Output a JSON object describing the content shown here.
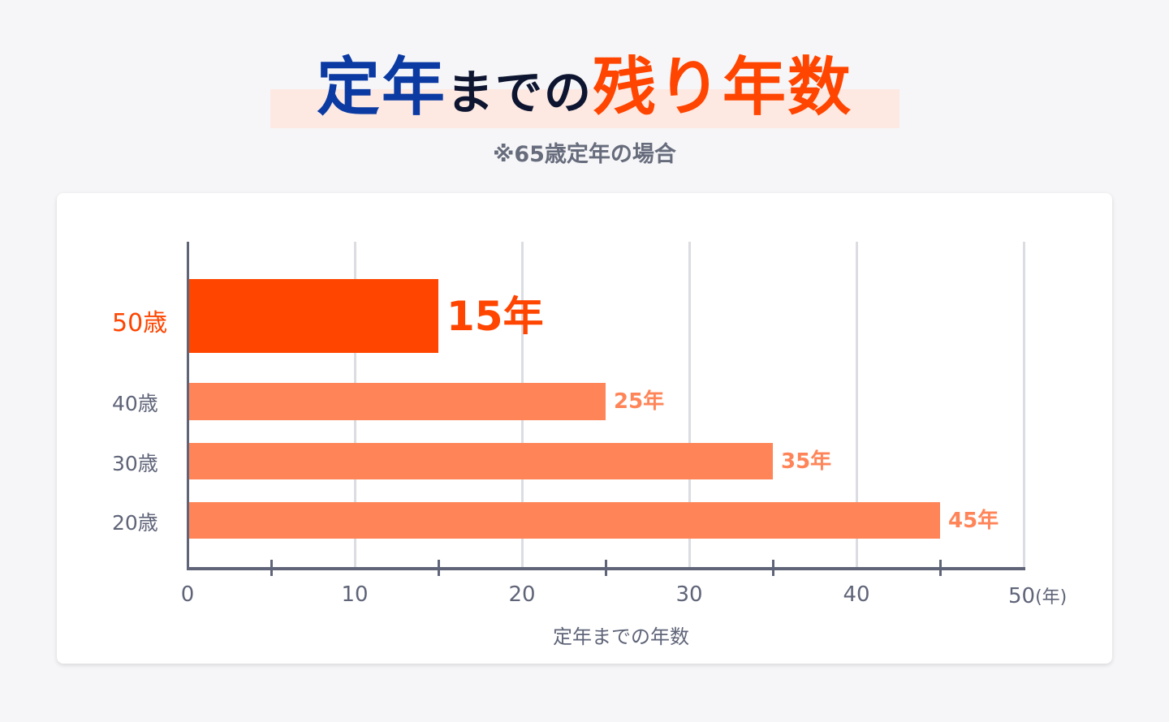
{
  "title": {
    "part1": "定年",
    "part2": "までの",
    "part3": "残り年数"
  },
  "subtitle": "※65歳定年の場合",
  "colors": {
    "blue": "#0b3aa2",
    "dark": "#0d1530",
    "accent": "#ff4500",
    "bar": "#ff8559",
    "highlight_band": "#fde9e2"
  },
  "chart_data": {
    "type": "bar",
    "orientation": "horizontal",
    "categories": [
      "50歳",
      "40歳",
      "30歳",
      "20歳"
    ],
    "values": [
      15,
      25,
      35,
      45
    ],
    "value_labels": [
      "15年",
      "25年",
      "35年",
      "45年"
    ],
    "highlighted": "50歳",
    "xlabel": "定年までの年数",
    "x_unit": "(年)",
    "xlim": [
      0,
      50
    ],
    "x_ticks": [
      "0",
      "10",
      "20",
      "30",
      "40",
      "50"
    ],
    "minor_ticks": [
      5,
      15,
      25,
      35,
      45
    ],
    "grid": true
  }
}
